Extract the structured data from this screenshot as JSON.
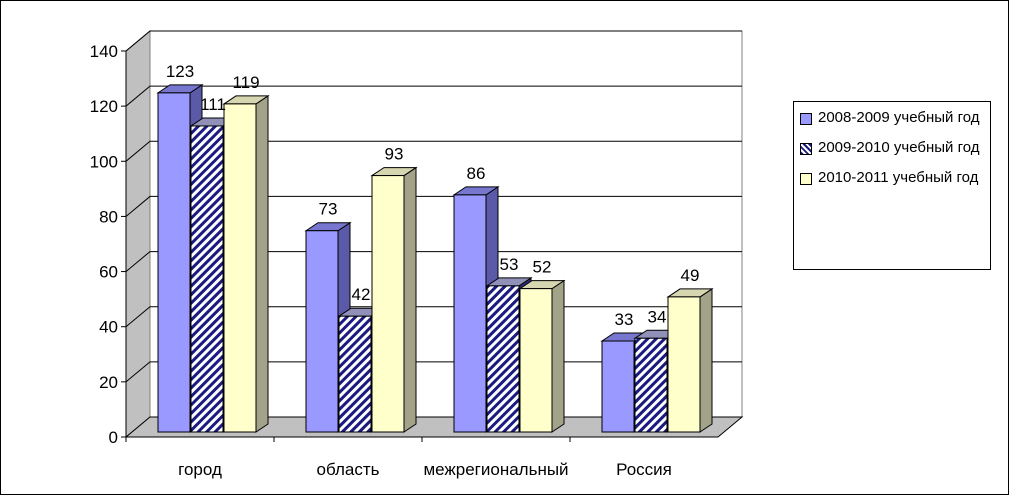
{
  "chart_data": {
    "type": "bar",
    "style": "3d-clustered",
    "title": "",
    "xlabel": "",
    "ylabel": "",
    "ylim": [
      0,
      140
    ],
    "yticks": [
      0,
      20,
      40,
      60,
      80,
      100,
      120,
      140
    ],
    "grid": true,
    "legend_position": "right",
    "categories": [
      "город",
      "область",
      "межрегиональный",
      "Россия"
    ],
    "series": [
      {
        "name": "2008-2009 учебный год",
        "values": [
          123,
          73,
          86,
          33
        ],
        "color": "#9999ff",
        "side_color": "#5a5aa8",
        "top_color": "#7777d0",
        "pattern": "solid"
      },
      {
        "name": "2009-2010 учебный год",
        "values": [
          111,
          42,
          53,
          34
        ],
        "color": "#ffffff",
        "side_color": "#2d2d7a",
        "top_color": "#9090b8",
        "pattern": "diagonal-hatch",
        "hatch_color": "#1a1a80"
      },
      {
        "name": "2010-2011 учебный год",
        "values": [
          119,
          93,
          52,
          49
        ],
        "color": "#ffffcc",
        "side_color": "#a3a38a",
        "top_color": "#d6d6b0",
        "pattern": "solid"
      }
    ]
  }
}
